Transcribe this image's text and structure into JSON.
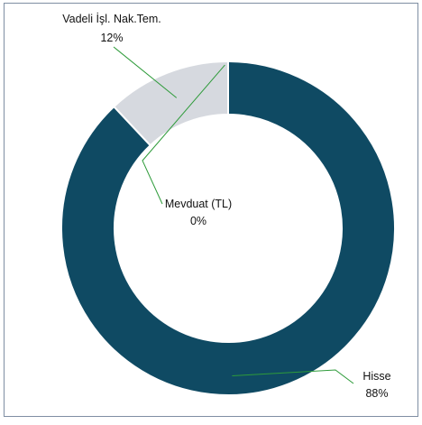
{
  "chart_data": {
    "type": "pie",
    "variant": "donut",
    "title": "",
    "slices": [
      {
        "label": "Hisse",
        "value": 88,
        "display": "88%",
        "color": "#0f4a63"
      },
      {
        "label": "Vadeli İşl. Nak.Tem.",
        "value": 12,
        "display": "12%",
        "color": "#d6d9df"
      },
      {
        "label": "Mevduat (TL)",
        "value": 0,
        "display": "0%",
        "color": "#d6d9df"
      }
    ],
    "legend": "none",
    "data_labels": "outside with leader lines",
    "leader_line_color": "#2e9b3a",
    "border_color": "#7f8ea3"
  }
}
